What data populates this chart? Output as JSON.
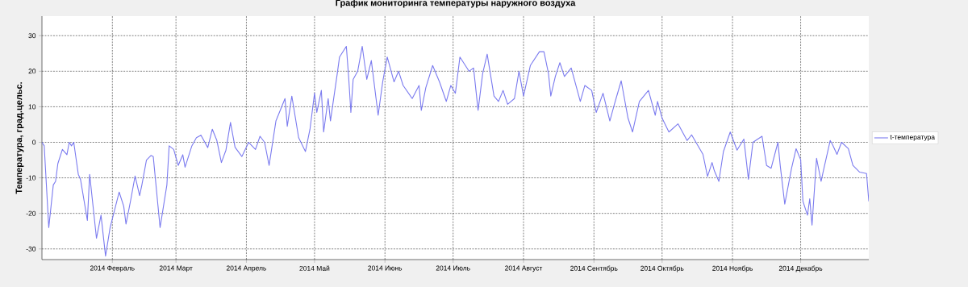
{
  "chart_data": {
    "type": "line",
    "title": "График мониторинга температуры наружного воздуха",
    "ylabel": "Температура, град.цельс.",
    "xlim": [
      "2014-01-01",
      "2014-12-31"
    ],
    "ylim": [
      -33,
      35.5
    ],
    "yticks": [
      -30,
      -20,
      -10,
      0,
      10,
      20,
      30
    ],
    "xticks": [
      {
        "value": "2014-02-01",
        "label": "2014 Февраль"
      },
      {
        "value": "2014-03-01",
        "label": "2014 Март"
      },
      {
        "value": "2014-04-01",
        "label": "2014 Апрель"
      },
      {
        "value": "2014-05-01",
        "label": "2014 Май"
      },
      {
        "value": "2014-06-01",
        "label": "2014 Июнь"
      },
      {
        "value": "2014-07-01",
        "label": "2014 Июль"
      },
      {
        "value": "2014-08-01",
        "label": "2014 Август"
      },
      {
        "value": "2014-09-01",
        "label": "2014 Сентябрь"
      },
      {
        "value": "2014-10-01",
        "label": "2014 Октябрь"
      },
      {
        "value": "2014-11-01",
        "label": "2014 Ноябрь"
      },
      {
        "value": "2014-12-01",
        "label": "2014 Декабрь"
      }
    ],
    "grid": true,
    "legend": "right",
    "line_style": "solid",
    "x": [
      "2014-01-01",
      "2014-01-02",
      "2014-01-04",
      "2014-01-06",
      "2014-01-07",
      "2014-01-08",
      "2014-01-10",
      "2014-01-12",
      "2014-01-13",
      "2014-01-14",
      "2014-01-15",
      "2014-01-17",
      "2014-01-18",
      "2014-01-21",
      "2014-01-22",
      "2014-01-23",
      "2014-01-25",
      "2014-01-27",
      "2014-01-29",
      "2014-01-31",
      "2014-02-02",
      "2014-02-04",
      "2014-02-06",
      "2014-02-07",
      "2014-02-09",
      "2014-02-11",
      "2014-02-13",
      "2014-02-14",
      "2014-02-16",
      "2014-02-18",
      "2014-02-19",
      "2014-02-22",
      "2014-02-25",
      "2014-02-26",
      "2014-02-28",
      "2014-03-02",
      "2014-03-04",
      "2014-03-05",
      "2014-03-08",
      "2014-03-10",
      "2014-03-12",
      "2014-03-15",
      "2014-03-17",
      "2014-03-19",
      "2014-03-21",
      "2014-03-23",
      "2014-03-25",
      "2014-03-27",
      "2014-03-30",
      "2014-04-02",
      "2014-04-05",
      "2014-04-07",
      "2014-04-09",
      "2014-04-11",
      "2014-04-14",
      "2014-04-18",
      "2014-04-19",
      "2014-04-21",
      "2014-04-24",
      "2014-04-27",
      "2014-04-29",
      "2014-05-01",
      "2014-05-02",
      "2014-05-04",
      "2014-05-05",
      "2014-05-07",
      "2014-05-08",
      "2014-05-11",
      "2014-05-12",
      "2014-05-15",
      "2014-05-16",
      "2014-05-17",
      "2014-05-18",
      "2014-05-20",
      "2014-05-22",
      "2014-05-24",
      "2014-05-26",
      "2014-05-29",
      "2014-05-31",
      "2014-06-02",
      "2014-06-05",
      "2014-06-07",
      "2014-06-09",
      "2014-06-13",
      "2014-06-16",
      "2014-06-17",
      "2014-06-19",
      "2014-06-22",
      "2014-06-25",
      "2014-06-28",
      "2014-06-30",
      "2014-07-02",
      "2014-07-04",
      "2014-07-08",
      "2014-07-10",
      "2014-07-12",
      "2014-07-14",
      "2014-07-16",
      "2014-07-19",
      "2014-07-21",
      "2014-07-23",
      "2014-07-25",
      "2014-07-28",
      "2014-07-30",
      "2014-08-01",
      "2014-08-04",
      "2014-08-08",
      "2014-08-10",
      "2014-08-12",
      "2014-08-13",
      "2014-08-15",
      "2014-08-17",
      "2014-08-19",
      "2014-08-22",
      "2014-08-26",
      "2014-08-28",
      "2014-08-31",
      "2014-09-02",
      "2014-09-05",
      "2014-09-08",
      "2014-09-10",
      "2014-09-13",
      "2014-09-16",
      "2014-09-18",
      "2014-09-21",
      "2014-09-25",
      "2014-09-28",
      "2014-09-29",
      "2014-10-01",
      "2014-10-04",
      "2014-10-08",
      "2014-10-12",
      "2014-10-14",
      "2014-10-19",
      "2014-10-21",
      "2014-10-23",
      "2014-10-24",
      "2014-10-26",
      "2014-10-28",
      "2014-10-31",
      "2014-11-03",
      "2014-11-06",
      "2014-11-08",
      "2014-11-10",
      "2014-11-14",
      "2014-11-16",
      "2014-11-18",
      "2014-11-21",
      "2014-11-22",
      "2014-11-24",
      "2014-11-27",
      "2014-11-29",
      "2014-12-01",
      "2014-12-02",
      "2014-12-04",
      "2014-12-05",
      "2014-12-06",
      "2014-12-08",
      "2014-12-10",
      "2014-12-11",
      "2014-12-14",
      "2014-12-15",
      "2014-12-17",
      "2014-12-19",
      "2014-12-22",
      "2014-12-24",
      "2014-12-27",
      "2014-12-30",
      "2014-12-31"
    ],
    "series": [
      {
        "name": "t-температура",
        "color": "#7b7bef",
        "values": [
          0,
          -1,
          -24,
          -12,
          -11,
          -6,
          -2,
          -3.5,
          0,
          -1,
          0,
          -9,
          -10.5,
          -22,
          -9,
          -15,
          -27,
          -20.5,
          -32,
          -24,
          -19,
          -14,
          -18,
          -23,
          -16.5,
          -9.5,
          -15,
          -12,
          -5,
          -3.7,
          -4,
          -24,
          -12,
          -1,
          -2,
          -6.5,
          -3.5,
          -7,
          -1,
          1.3,
          2,
          -1.5,
          3.7,
          0.5,
          -5.7,
          -2.2,
          5.6,
          -1.4,
          -4,
          0,
          -2,
          1.7,
          0,
          -6.5,
          6,
          12.3,
          4.5,
          13,
          1.3,
          -2.6,
          3.7,
          13.8,
          8.4,
          14.6,
          2.9,
          12.3,
          6,
          19.3,
          24,
          27,
          18.5,
          8.4,
          17.7,
          20,
          27,
          17.7,
          23,
          7.6,
          17,
          24,
          17,
          20,
          16,
          12.3,
          16,
          9,
          15.4,
          21.6,
          17,
          11.5,
          16,
          13.8,
          24,
          20,
          20.9,
          9,
          19.3,
          24.8,
          13,
          11.5,
          14.6,
          10.7,
          12.3,
          20,
          13,
          21.6,
          25.5,
          25.5,
          19.3,
          13,
          18.5,
          22.4,
          18.5,
          20.9,
          11.5,
          16,
          14.6,
          8.4,
          13.8,
          6,
          10.7,
          17.3,
          6.8,
          2.9,
          11.5,
          14.6,
          7.6,
          11.5,
          6.8,
          2.9,
          5.2,
          0.5,
          2.1,
          -3.4,
          -9.6,
          -5.7,
          -8,
          -11,
          -2.6,
          2.9,
          -2.2,
          0.9,
          -10.4,
          0,
          1.7,
          -6.5,
          -7.3,
          0,
          -6.5,
          -17.4,
          -7.3,
          -1.8,
          -4.9,
          -16.6,
          -20.5,
          -15.9,
          -23.3,
          -4.5,
          -11,
          -8,
          0.5,
          -0.6,
          -3.4,
          0,
          -1.8,
          -6.5,
          -8.4,
          -8.8,
          -16.6
        ]
      }
    ]
  }
}
